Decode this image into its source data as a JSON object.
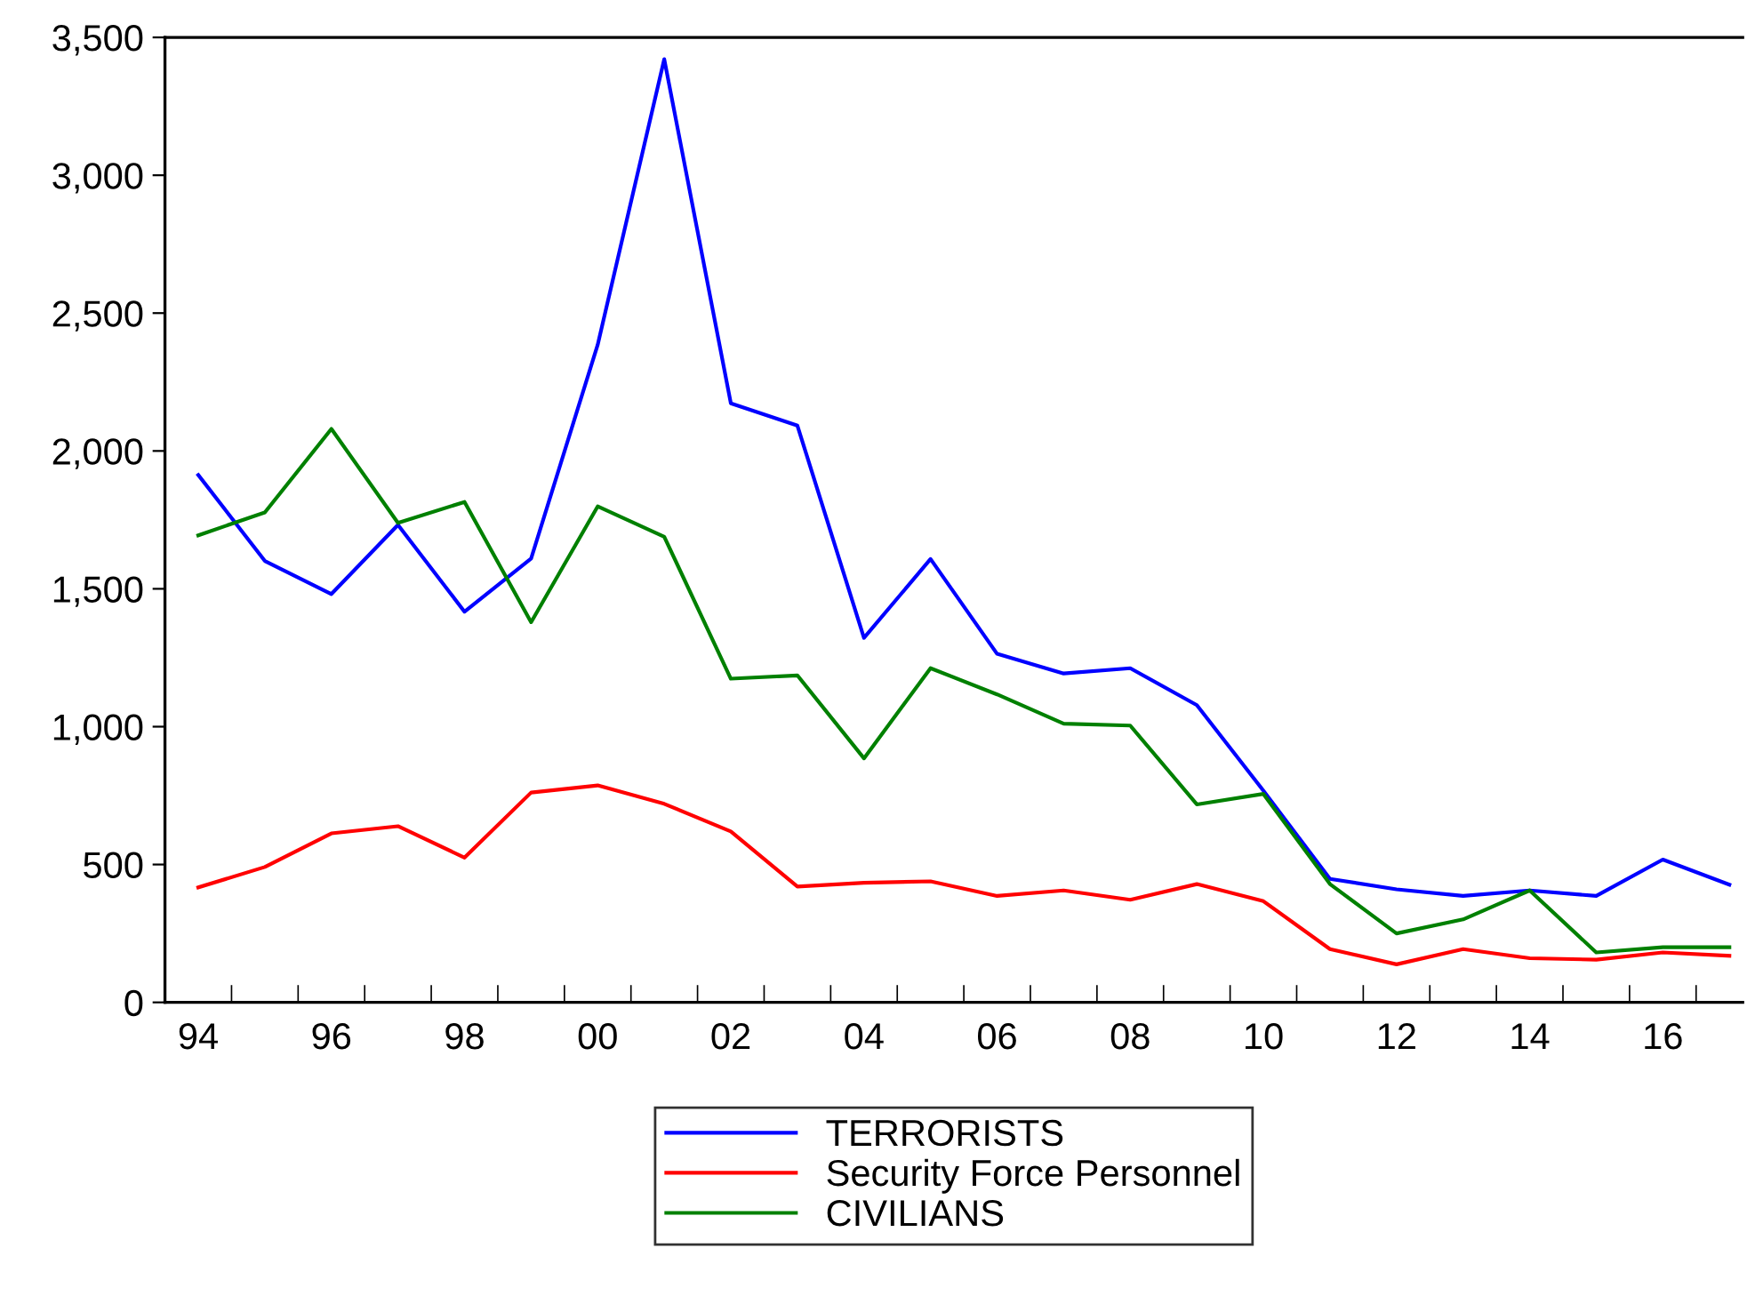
{
  "chart_data": {
    "type": "line",
    "x": [
      1994,
      1995,
      1996,
      1997,
      1998,
      1999,
      2000,
      2001,
      2002,
      2003,
      2004,
      2005,
      2006,
      2007,
      2008,
      2009,
      2010,
      2011,
      2012,
      2013,
      2014,
      2015,
      2016,
      2017
    ],
    "series": [
      {
        "name": "TERRORISTS",
        "color": "#0000ff",
        "values": [
          1913,
          1601,
          1481,
          1732,
          1417,
          1610,
          2385,
          3421,
          2173,
          2092,
          1322,
          1608,
          1264,
          1193,
          1212,
          1078,
          768,
          448,
          410,
          386,
          406,
          386,
          518,
          427
        ]
      },
      {
        "name": "Security Force Personnel",
        "color": "#ff0000",
        "values": [
          417,
          491,
          613,
          639,
          525,
          761,
          787,
          720,
          620,
          420,
          434,
          439,
          386,
          406,
          372,
          429,
          367,
          193,
          138,
          193,
          160,
          155,
          181,
          169
        ]
      },
      {
        "name": "CIVILIANS",
        "color": "#008000",
        "values": [
          1694,
          1777,
          2080,
          1739,
          1815,
          1379,
          1799,
          1689,
          1174,
          1186,
          885,
          1212,
          1117,
          1011,
          1004,
          718,
          756,
          429,
          250,
          301,
          406,
          181,
          200,
          200
        ]
      }
    ],
    "xlim": [
      1993.5,
      2017.2
    ],
    "xticks": [
      {
        "value": 1994,
        "label": "94"
      },
      {
        "value": 1996,
        "label": "96"
      },
      {
        "value": 1998,
        "label": "98"
      },
      {
        "value": 2000,
        "label": "00"
      },
      {
        "value": 2002,
        "label": "02"
      },
      {
        "value": 2004,
        "label": "04"
      },
      {
        "value": 2006,
        "label": "06"
      },
      {
        "value": 2008,
        "label": "08"
      },
      {
        "value": 2010,
        "label": "10"
      },
      {
        "value": 2012,
        "label": "12"
      },
      {
        "value": 2014,
        "label": "14"
      },
      {
        "value": 2016,
        "label": "16"
      },
      {
        "value": 1994.5,
        "label": null
      },
      {
        "value": 1995.5,
        "label": null
      },
      {
        "value": 1996.5,
        "label": null
      },
      {
        "value": 1997.5,
        "label": null
      },
      {
        "value": 1998.5,
        "label": null
      },
      {
        "value": 1999.5,
        "label": null
      },
      {
        "value": 2000.5,
        "label": null
      },
      {
        "value": 2001.5,
        "label": null
      },
      {
        "value": 2002.5,
        "label": null
      },
      {
        "value": 2003.5,
        "label": null
      },
      {
        "value": 2004.5,
        "label": null
      },
      {
        "value": 2005.5,
        "label": null
      },
      {
        "value": 2006.5,
        "label": null
      },
      {
        "value": 2007.5,
        "label": null
      },
      {
        "value": 2008.5,
        "label": null
      },
      {
        "value": 2009.5,
        "label": null
      },
      {
        "value": 2010.5,
        "label": null
      },
      {
        "value": 2011.5,
        "label": null
      },
      {
        "value": 2012.5,
        "label": null
      },
      {
        "value": 2013.5,
        "label": null
      },
      {
        "value": 2014.5,
        "label": null
      },
      {
        "value": 2015.5,
        "label": null
      },
      {
        "value": 2016.5,
        "label": null
      }
    ],
    "ylim": [
      0,
      3500
    ],
    "yticks": [
      0,
      {
        "value": 500,
        "label": "500"
      },
      {
        "value": 1000,
        "label": "1,000"
      },
      {
        "value": 1500,
        "label": "1,500"
      },
      {
        "value": 2000,
        "label": "2,000"
      },
      {
        "value": 2500,
        "label": "2,500"
      },
      {
        "value": 3000,
        "label": "3,000"
      },
      {
        "value": 3500,
        "label": "3,500"
      }
    ],
    "grid": false,
    "legend": "bottom",
    "marker": "none",
    "line_style": "solid"
  }
}
